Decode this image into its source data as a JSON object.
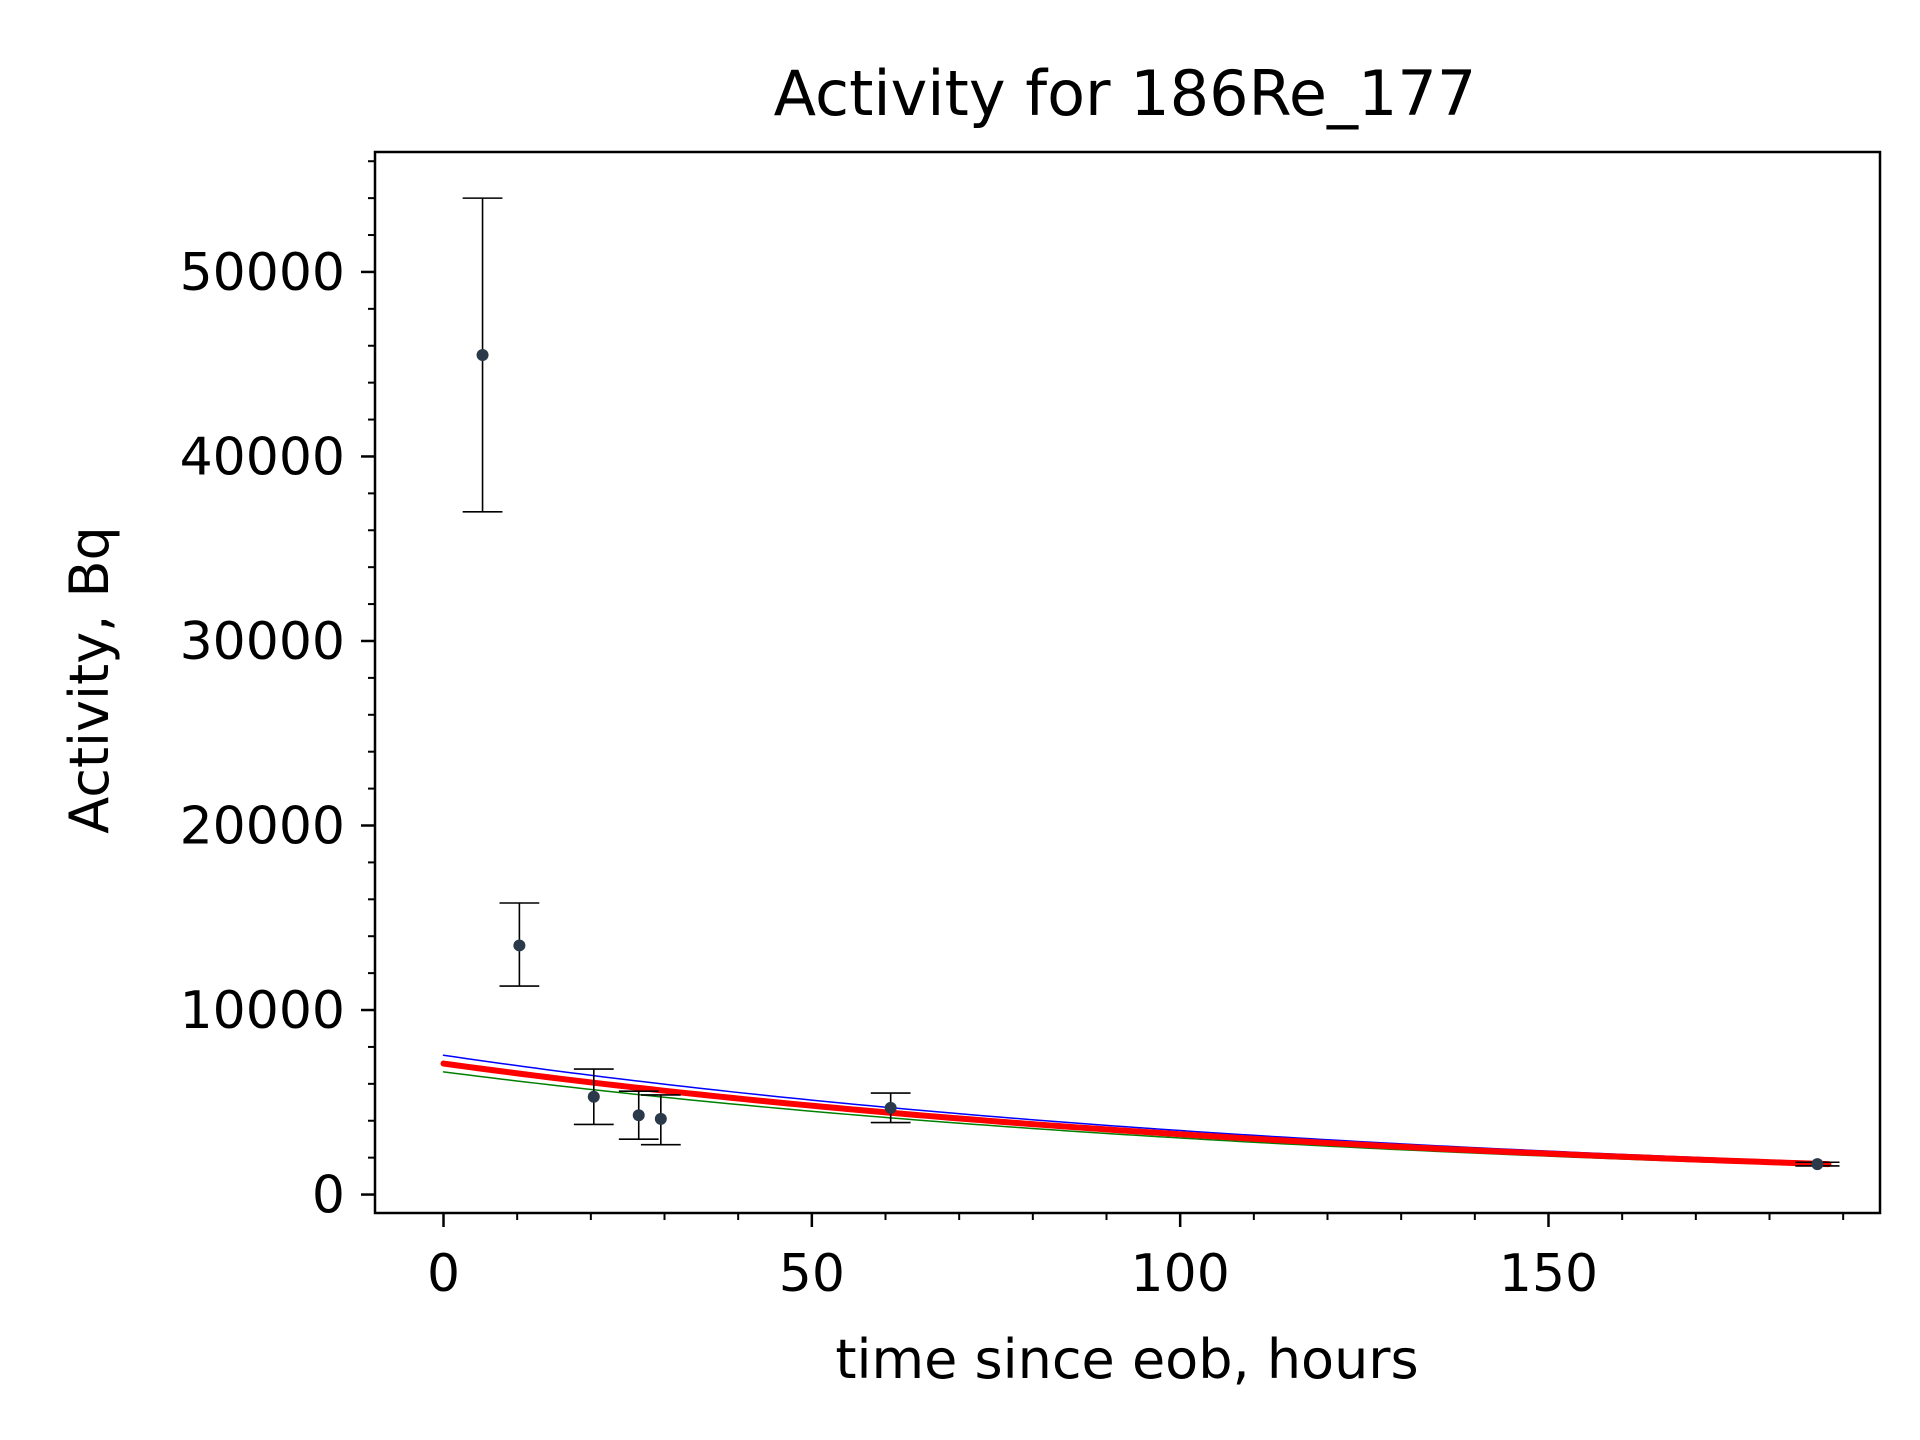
{
  "chart_data": {
    "type": "scatter",
    "title": "Activity for 186Re_177",
    "xlabel": "time since eob, hours",
    "ylabel": "Activity, Bq",
    "xlim": [
      -9.3,
      195
    ],
    "ylim": [
      -1000,
      56500
    ],
    "grid": false,
    "xticks": [
      0,
      50,
      100,
      150
    ],
    "yticks": [
      0,
      10000,
      20000,
      30000,
      40000,
      50000
    ],
    "xtick_labels": [
      "0",
      "50",
      "100",
      "150"
    ],
    "ytick_labels": [
      "0",
      "10000",
      "20000",
      "30000",
      "40000",
      "50000"
    ],
    "x_minor_step": 10,
    "y_minor_step": 2000,
    "points": [
      {
        "x": 5.3,
        "y": 45500,
        "yerr": [
          37000,
          54000
        ],
        "xerr": 2.7
      },
      {
        "x": 10.3,
        "y": 13500,
        "yerr": [
          11300,
          15800
        ],
        "xerr": 2.7
      },
      {
        "x": 20.4,
        "y": 5300,
        "yerr": [
          3800,
          6800
        ],
        "xerr": 2.7
      },
      {
        "x": 26.5,
        "y": 4300,
        "yerr": [
          3000,
          5600
        ],
        "xerr": 2.7
      },
      {
        "x": 29.5,
        "y": 4100,
        "yerr": [
          2700,
          5400
        ],
        "xerr": 2.7
      },
      {
        "x": 60.7,
        "y": 4700,
        "yerr": [
          3900,
          5500
        ],
        "xerr": 2.7
      },
      {
        "x": 186.5,
        "y": 1650,
        "yerr": [
          1550,
          1750
        ],
        "xerr": 3.0
      }
    ],
    "fit_curves": [
      {
        "role": "upper",
        "color": "#0000ff",
        "x0": 0,
        "x1": 188,
        "y0": 7550,
        "y1": 1750,
        "width": 1.5
      },
      {
        "role": "lower",
        "color": "#008000",
        "x0": 0,
        "x1": 188,
        "y0": 6650,
        "y1": 1550,
        "width": 1.5
      },
      {
        "role": "fit",
        "color": "#ff0000",
        "x0": 0,
        "x1": 188,
        "y0": 7100,
        "y1": 1650,
        "width": 6
      }
    ],
    "marker_color": "#2b3a4a",
    "errorbar_color": "#000000"
  }
}
